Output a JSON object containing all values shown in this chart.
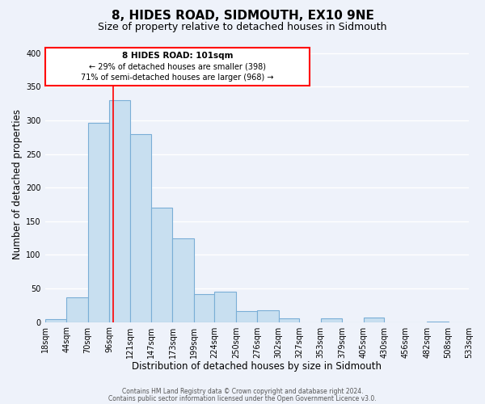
{
  "title": "8, HIDES ROAD, SIDMOUTH, EX10 9NE",
  "subtitle": "Size of property relative to detached houses in Sidmouth",
  "xlabel": "Distribution of detached houses by size in Sidmouth",
  "ylabel": "Number of detached properties",
  "bar_left_edges": [
    18,
    44,
    70,
    96,
    121,
    147,
    173,
    199,
    224,
    250,
    276,
    302,
    327,
    353,
    379,
    405,
    430,
    456,
    482,
    508
  ],
  "bar_heights": [
    4,
    37,
    297,
    330,
    280,
    170,
    124,
    42,
    45,
    16,
    17,
    5,
    0,
    6,
    0,
    7,
    0,
    0,
    1,
    0
  ],
  "bar_widths": [
    26,
    26,
    26,
    25,
    26,
    26,
    26,
    25,
    26,
    26,
    26,
    25,
    26,
    26,
    26,
    25,
    26,
    26,
    26,
    25
  ],
  "bar_color": "#c8dff0",
  "bar_edge_color": "#7aaed6",
  "xlim": [
    18,
    533
  ],
  "ylim": [
    0,
    410
  ],
  "yticks": [
    0,
    50,
    100,
    150,
    200,
    250,
    300,
    350,
    400
  ],
  "xtick_labels": [
    "18sqm",
    "44sqm",
    "70sqm",
    "96sqm",
    "121sqm",
    "147sqm",
    "173sqm",
    "199sqm",
    "224sqm",
    "250sqm",
    "276sqm",
    "302sqm",
    "327sqm",
    "353sqm",
    "379sqm",
    "405sqm",
    "430sqm",
    "456sqm",
    "482sqm",
    "508sqm",
    "533sqm"
  ],
  "xtick_positions": [
    18,
    44,
    70,
    96,
    121,
    147,
    173,
    199,
    224,
    250,
    276,
    302,
    327,
    353,
    379,
    405,
    430,
    456,
    482,
    508,
    533
  ],
  "red_line_x": 101,
  "annotation_title": "8 HIDES ROAD: 101sqm",
  "annotation_line1": "← 29% of detached houses are smaller (398)",
  "annotation_line2": "71% of semi-detached houses are larger (968) →",
  "footer_line1": "Contains HM Land Registry data © Crown copyright and database right 2024.",
  "footer_line2": "Contains public sector information licensed under the Open Government Licence v3.0.",
  "background_color": "#eef2fa",
  "grid_color": "#ffffff",
  "title_fontsize": 11,
  "subtitle_fontsize": 9,
  "axis_label_fontsize": 8.5,
  "tick_fontsize": 7
}
